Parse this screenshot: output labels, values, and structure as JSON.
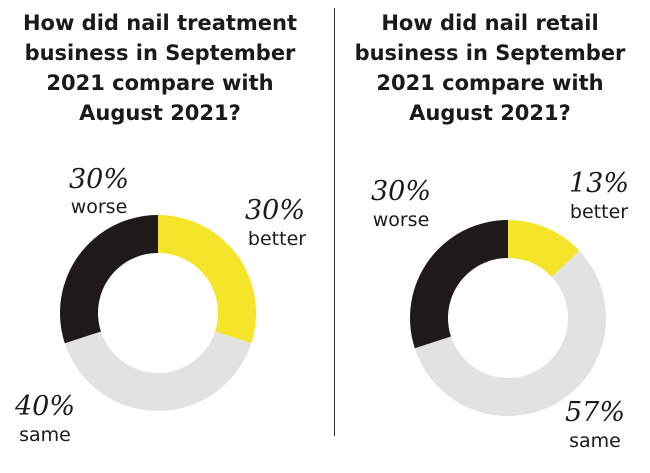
{
  "chart_data": [
    {
      "type": "pie",
      "title": "How did nail treatment business in September 2021 compare with August 2021?",
      "title_lines": [
        "How did nail treatment",
        "business in September",
        "2021 compare with",
        "August 2021?"
      ],
      "slices": [
        {
          "label": "better",
          "value": 30,
          "display": "30%",
          "color": "#f5e52a"
        },
        {
          "label": "same",
          "value": 40,
          "display": "40%",
          "color": "#e2e2e2"
        },
        {
          "label": "worse",
          "value": 30,
          "display": "30%",
          "color": "#1e1a1b"
        }
      ]
    },
    {
      "type": "pie",
      "title": "How did nail retail business in September 2021 compare with August 2021?",
      "title_lines": [
        "How did nail retail",
        "business in September",
        "2021 compare with",
        "August 2021?"
      ],
      "slices": [
        {
          "label": "better",
          "value": 13,
          "display": "13%",
          "color": "#f5e52a"
        },
        {
          "label": "same",
          "value": 57,
          "display": "57%",
          "color": "#e2e2e2"
        },
        {
          "label": "worse",
          "value": 30,
          "display": "30%",
          "color": "#1e1a1b"
        }
      ]
    }
  ]
}
